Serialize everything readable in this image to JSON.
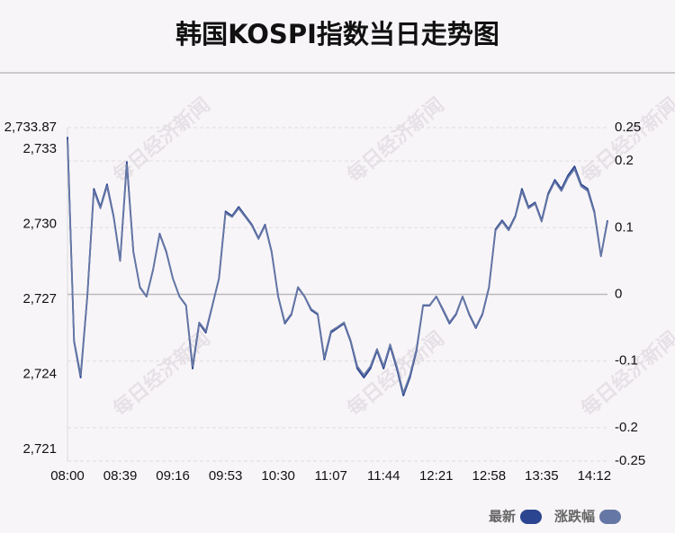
{
  "chart_data": {
    "type": "line",
    "title": "韩国KOSPI指数当日走势图",
    "watermark": "每日经济新闻",
    "categories": [
      "08:00",
      null,
      null,
      null,
      null,
      null,
      null,
      null,
      "08:39",
      null,
      null,
      null,
      null,
      null,
      null,
      null,
      "09:16",
      null,
      null,
      null,
      null,
      null,
      null,
      null,
      "09:53",
      null,
      null,
      null,
      null,
      null,
      null,
      null,
      "10:30",
      null,
      null,
      null,
      null,
      null,
      null,
      null,
      "11:07",
      null,
      null,
      null,
      null,
      null,
      null,
      null,
      "11:44",
      null,
      null,
      null,
      null,
      null,
      null,
      null,
      "12:21",
      null,
      null,
      null,
      null,
      null,
      null,
      null,
      "12:58",
      null,
      null,
      null,
      null,
      null,
      null,
      null,
      "13:35",
      null,
      null,
      null,
      null,
      null,
      null,
      null,
      "14:12",
      null,
      null
    ],
    "series": [
      {
        "name": "最新",
        "color": "#2b4590",
        "axis": "y",
        "values": [
          2733.5,
          2725.31,
          2723.87,
          2727.11,
          2731.42,
          2730.7,
          2731.6,
          2730.34,
          2728.55,
          2732.5,
          2728.91,
          2727.47,
          2727.11,
          2728.19,
          2729.63,
          2728.91,
          2727.83,
          2727.11,
          2726.75,
          2724.23,
          2726.03,
          2725.67,
          2726.75,
          2727.83,
          2730.52,
          2730.34,
          2730.7,
          2730.34,
          2729.99,
          2729.45,
          2729.99,
          2728.91,
          2727.11,
          2726.03,
          2726.39,
          2727.47,
          2727.11,
          2726.57,
          2726.39,
          2724.59,
          2725.67,
          2725.85,
          2726.03,
          2725.31,
          2724.23,
          2723.87,
          2724.23,
          2724.95,
          2724.23,
          2725.13,
          2724.23,
          2723.15,
          2723.87,
          2724.95,
          2726.75,
          2726.75,
          2727.11,
          2726.57,
          2726.03,
          2726.39,
          2727.11,
          2726.39,
          2725.85,
          2726.39,
          2727.47,
          2729.81,
          2730.16,
          2729.81,
          2730.34,
          2731.42,
          2730.7,
          2730.88,
          2730.16,
          2731.24,
          2731.78,
          2731.42,
          2731.96,
          2732.32,
          2731.6,
          2731.42,
          2730.52,
          2728.73,
          2730.16
        ]
      },
      {
        "name": "涨跌幅",
        "color": "#6577a5",
        "axis": "y2",
        "values": [
          0.232,
          -0.069,
          -0.121,
          -0.003,
          0.155,
          0.129,
          0.162,
          0.116,
          0.05,
          0.195,
          0.063,
          0.011,
          -0.003,
          0.037,
          0.09,
          0.063,
          0.024,
          -0.003,
          -0.016,
          -0.108,
          -0.042,
          -0.055,
          -0.016,
          0.024,
          0.122,
          0.116,
          0.129,
          0.116,
          0.103,
          0.083,
          0.103,
          0.063,
          -0.003,
          -0.042,
          -0.029,
          0.011,
          -0.003,
          -0.022,
          -0.029,
          -0.095,
          -0.055,
          -0.049,
          -0.042,
          -0.069,
          -0.108,
          -0.121,
          -0.108,
          -0.082,
          -0.108,
          -0.075,
          -0.108,
          -0.148,
          -0.121,
          -0.082,
          -0.016,
          -0.016,
          -0.003,
          -0.022,
          -0.042,
          -0.029,
          -0.003,
          -0.029,
          -0.049,
          -0.029,
          0.011,
          0.096,
          0.109,
          0.096,
          0.116,
          0.155,
          0.129,
          0.136,
          0.109,
          0.149,
          0.169,
          0.155,
          0.175,
          0.188,
          0.162,
          0.155,
          0.122,
          0.057,
          0.109
        ]
      }
    ],
    "ylim": [
      2720.53,
      2733.87
    ],
    "yticks": [
      {
        "value": 2721,
        "label": "2,721"
      },
      {
        "value": 2724,
        "label": "2,724"
      },
      {
        "value": 2727,
        "label": "2,727"
      },
      {
        "value": 2730,
        "label": "2,730"
      },
      {
        "value": 2733,
        "label": "2,733"
      },
      {
        "value": 2733.87,
        "label": "2,733.87"
      }
    ],
    "y2lim": [
      -0.25,
      0.25
    ],
    "y2ticks": [
      -0.25,
      -0.2,
      -0.1,
      0,
      0.1,
      0.2,
      0.25
    ],
    "grid": true,
    "legend": "bottom-right"
  }
}
